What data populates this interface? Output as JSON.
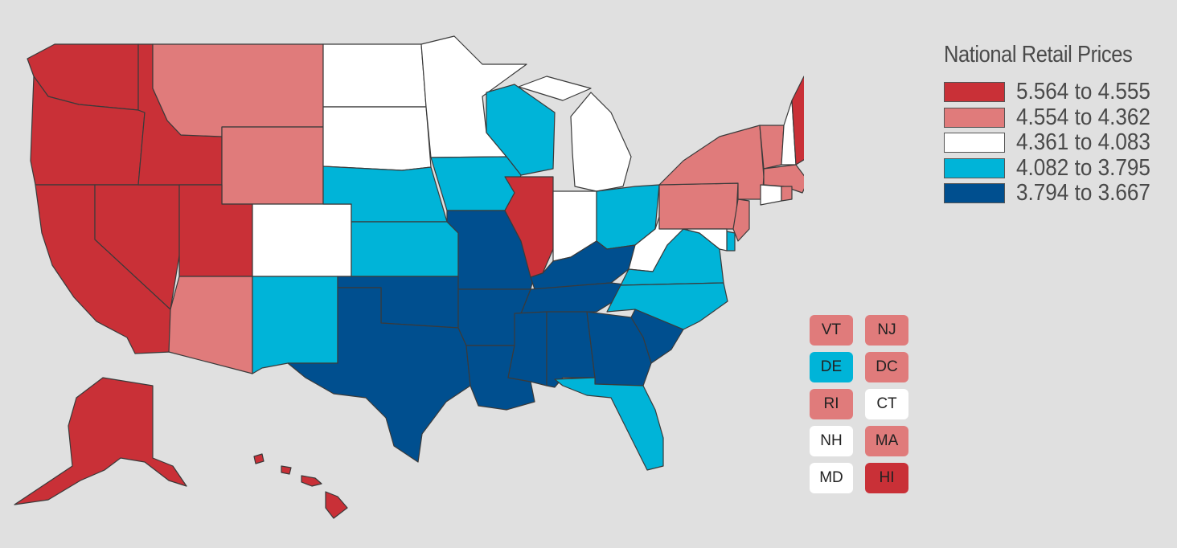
{
  "legend": {
    "title": "National Retail Prices",
    "bins": [
      {
        "label": "5.564 to 4.555",
        "color": "#c93037"
      },
      {
        "label": "4.554 to 4.362",
        "color": "#e07b7b"
      },
      {
        "label": "4.361 to 4.083",
        "color": "#ffffff"
      },
      {
        "label": "4.082 to 3.795",
        "color": "#00b4d8"
      },
      {
        "label": "3.794 to 3.667",
        "color": "#004f8f"
      }
    ]
  },
  "small_states": [
    {
      "abbr": "VT",
      "bin": 1
    },
    {
      "abbr": "NJ",
      "bin": 1
    },
    {
      "abbr": "DE",
      "bin": 3
    },
    {
      "abbr": "DC",
      "bin": 1
    },
    {
      "abbr": "RI",
      "bin": 1
    },
    {
      "abbr": "CT",
      "bin": 2
    },
    {
      "abbr": "NH",
      "bin": 2
    },
    {
      "abbr": "MA",
      "bin": 1
    },
    {
      "abbr": "MD",
      "bin": 2
    },
    {
      "abbr": "HI",
      "bin": 0
    }
  ],
  "state_bins": {
    "WA": 0,
    "OR": 0,
    "CA": 0,
    "NV": 0,
    "ID": 0,
    "UT": 0,
    "IL": 0,
    "ME": 0,
    "AK": 0,
    "HI": 0,
    "MT": 1,
    "WY": 1,
    "AZ": 1,
    "NY": 1,
    "PA": 1,
    "VT": 1,
    "NJ": 1,
    "MA": 1,
    "RI": 1,
    "DC": 1,
    "ND": 2,
    "SD": 2,
    "MN": 2,
    "MI": 2,
    "CO": 2,
    "IN": 2,
    "WV": 2,
    "NH": 2,
    "CT": 2,
    "MD": 2,
    "NE": 3,
    "KS": 3,
    "IA": 3,
    "WI": 3,
    "OH": 3,
    "VA": 3,
    "NC": 3,
    "NM": 3,
    "FL": 3,
    "DE": 3,
    "TX": 4,
    "OK": 4,
    "MO": 4,
    "AR": 4,
    "LA": 4,
    "MS": 4,
    "AL": 4,
    "TN": 4,
    "KY": 4,
    "GA": 4,
    "SC": 4
  }
}
